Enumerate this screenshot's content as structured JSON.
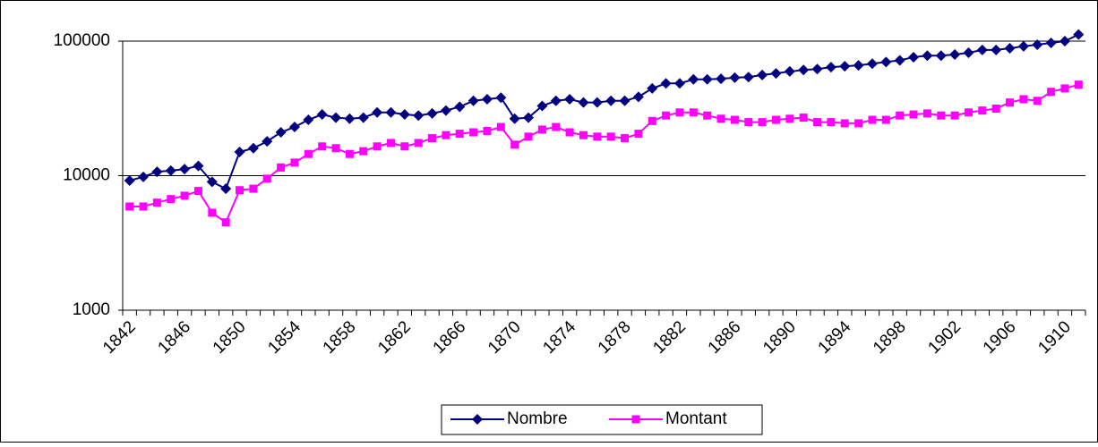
{
  "chart_data": {
    "type": "line",
    "log_scale": true,
    "grid": true,
    "legend": "bottom",
    "categories": [
      "1842",
      null,
      null,
      null,
      "1846",
      null,
      null,
      null,
      "1850",
      null,
      null,
      null,
      "1854",
      null,
      null,
      null,
      "1858",
      null,
      null,
      null,
      "1862",
      null,
      null,
      null,
      "1866",
      null,
      null,
      null,
      "1870",
      null,
      null,
      null,
      "1874",
      null,
      null,
      null,
      "1878",
      null,
      null,
      null,
      "1882",
      null,
      null,
      null,
      "1886",
      null,
      null,
      null,
      "1890",
      null,
      null,
      null,
      "1894",
      null,
      null,
      null,
      "1898",
      null,
      null,
      null,
      "1902",
      null,
      null,
      null,
      "1906",
      null,
      null,
      null,
      "1910",
      null
    ],
    "series": [
      {
        "name": "Nombre",
        "color": "#000080",
        "marker": "diamond",
        "values": [
          9200,
          9800,
          10700,
          10900,
          11200,
          11800,
          9000,
          8000,
          15000,
          16000,
          18000,
          21000,
          23000,
          26000,
          28500,
          27000,
          26500,
          27000,
          29500,
          29500,
          28500,
          28000,
          29000,
          30500,
          32500,
          36000,
          37000,
          38000,
          26500,
          27000,
          33000,
          36000,
          37000,
          35000,
          35000,
          36000,
          36000,
          38500,
          44500,
          48500,
          48500,
          52000,
          52000,
          52500,
          53500,
          54000,
          56000,
          57500,
          59500,
          61000,
          62000,
          64000,
          65000,
          66000,
          68000,
          70000,
          72000,
          76000,
          78000,
          78000,
          79500,
          82000,
          86000,
          86000,
          88500,
          91500,
          94000,
          97000,
          100000,
          112000
        ]
      },
      {
        "name": "Montant",
        "color": "#ff00ff",
        "marker": "square",
        "values": [
          5900,
          5900,
          6300,
          6700,
          7100,
          7700,
          5300,
          4500,
          7800,
          8000,
          9500,
          11500,
          12500,
          14500,
          16500,
          16000,
          14500,
          15200,
          16500,
          17500,
          16500,
          17500,
          19000,
          20000,
          20500,
          21000,
          21500,
          23000,
          17000,
          19500,
          22000,
          23000,
          21000,
          20000,
          19500,
          19500,
          19000,
          20500,
          25500,
          28000,
          29500,
          29500,
          28000,
          26500,
          26000,
          25000,
          25000,
          26000,
          26500,
          27000,
          25000,
          25000,
          24500,
          24500,
          26000,
          26000,
          28000,
          28500,
          29000,
          28000,
          28000,
          29500,
          30500,
          31500,
          35000,
          37000,
          36000,
          42000,
          44500,
          47500
        ]
      }
    ],
    "ylim": [
      1000,
      100000
    ],
    "yticks": [
      1000,
      10000,
      100000
    ]
  }
}
